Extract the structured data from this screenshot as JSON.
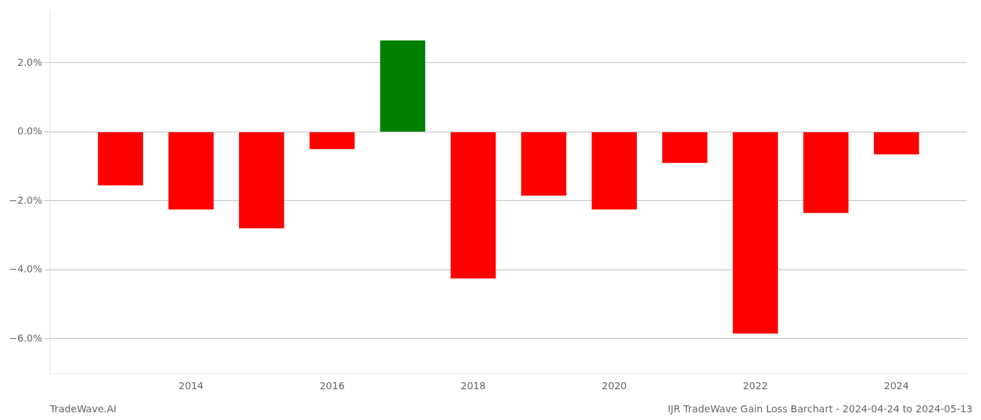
{
  "chart_data": {
    "type": "bar",
    "title": "IJR TradeWave Gain Loss Barchart - 2024-04-24 to 2024-05-13",
    "annotations": [
      "TradeWave.AI"
    ],
    "x": [
      2013,
      2014,
      2015,
      2016,
      2017,
      2018,
      2019,
      2020,
      2021,
      2022,
      2023,
      2024
    ],
    "values": [
      -1.55,
      -2.25,
      -2.8,
      -0.5,
      2.65,
      -4.25,
      -1.85,
      -2.25,
      -0.9,
      -5.85,
      -2.35,
      -0.65
    ],
    "colors": [
      "#FF0000",
      "#FF0000",
      "#FF0000",
      "#FF0000",
      "#008000",
      "#FF0000",
      "#FF0000",
      "#FF0000",
      "#FF0000",
      "#FF0000",
      "#FF0000",
      "#FF0000"
    ],
    "xlim": [
      2012,
      2025
    ],
    "xticks": [
      2014,
      2016,
      2018,
      2020,
      2022,
      2024
    ],
    "ylim": [
      -7.0,
      3.5
    ],
    "yticks": [
      {
        "value": -6.0,
        "label": "−6.0%"
      },
      {
        "value": -4.0,
        "label": "−4.0%"
      },
      {
        "value": -2.0,
        "label": "−2.0%"
      },
      {
        "value": 0.0,
        "label": "0.0%"
      },
      {
        "value": 2.0,
        "label": "2.0%"
      }
    ],
    "grid": true
  }
}
